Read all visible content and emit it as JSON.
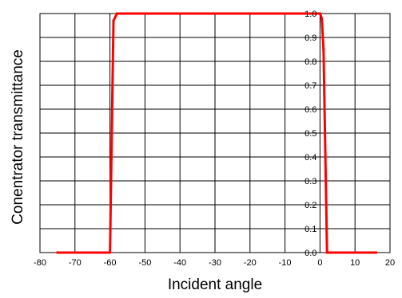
{
  "chart_data": {
    "type": "line",
    "title": "",
    "xlabel": "Incident angle",
    "ylabel": "Conentrator transmittance",
    "xlim": [
      -80,
      20
    ],
    "ylim": [
      0,
      1.0
    ],
    "grid": true,
    "legend": "none",
    "x_ticks": [
      "-80",
      "-70",
      "-60",
      "-50",
      "-40",
      "-30",
      "-20",
      "-10",
      "0",
      "10",
      "20"
    ],
    "y_ticks": [
      "0.0",
      "0.1",
      "0.2",
      "0.3",
      "0.4",
      "0.5",
      "0.6",
      "0.7",
      "0.8",
      "0.9",
      "1.0"
    ],
    "series_color": "#ff0000",
    "series": [
      {
        "x": [
          -75,
          -60,
          -59,
          -58,
          0,
          0.5,
          1,
          2,
          3,
          16
        ],
        "y": [
          0.0,
          0.0,
          0.97,
          1.0,
          1.0,
          0.98,
          0.85,
          0.0,
          0.0,
          0.0
        ]
      }
    ]
  }
}
